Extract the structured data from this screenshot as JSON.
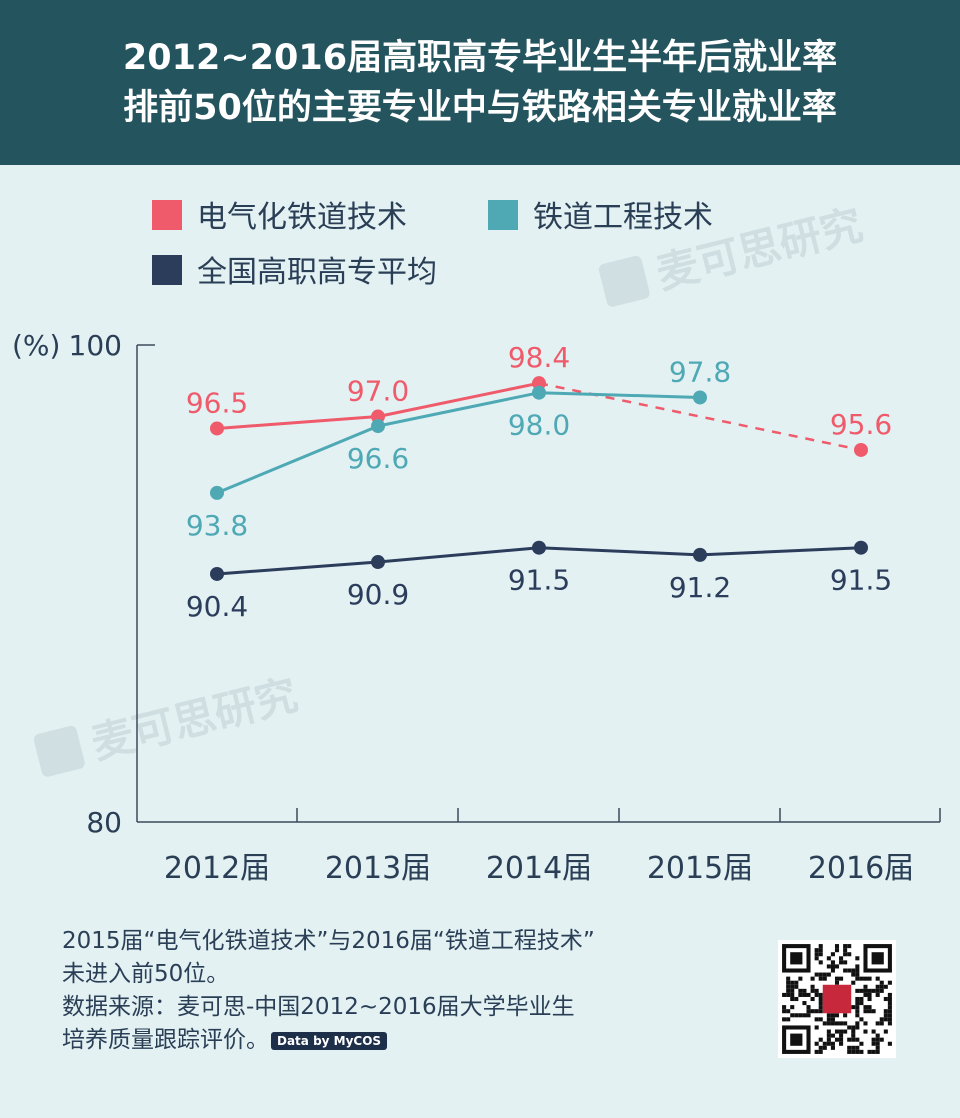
{
  "header": {
    "title_line1": "2012~2016届高职高专毕业生半年后就业率",
    "title_line2": "排前50位的主要专业中与铁路相关专业就业率"
  },
  "watermark": {
    "text": "麦可思研究",
    "logo_text": "麦可思研究"
  },
  "chart_data": {
    "type": "line",
    "categories": [
      "2012届",
      "2013届",
      "2014届",
      "2015届",
      "2016届"
    ],
    "ylabel": "(%)",
    "ylim": [
      80,
      100
    ],
    "yticks": [
      "100",
      "80"
    ],
    "legend_position": "top-left",
    "grid": false,
    "series": [
      {
        "name": "电气化铁道技术",
        "color": "#ef5b6b",
        "values": [
          96.5,
          97.0,
          98.4,
          null,
          95.6
        ],
        "labels": [
          "96.5",
          "97.0",
          "98.4",
          "",
          "95.6"
        ],
        "label_side": [
          "above",
          "above",
          "above",
          "above",
          "above"
        ],
        "dashed_bridge": [
          2,
          4
        ]
      },
      {
        "name": "铁道工程技术",
        "color": "#4fa9b5",
        "values": [
          93.8,
          96.6,
          98.0,
          97.8,
          null
        ],
        "labels": [
          "93.8",
          "96.6",
          "98.0",
          "97.8",
          ""
        ],
        "label_side": [
          "below",
          "below",
          "below",
          "above",
          "above"
        ]
      },
      {
        "name": "全国高职高专平均",
        "color": "#2c3d5c",
        "values": [
          90.4,
          90.9,
          91.5,
          91.2,
          91.5
        ],
        "labels": [
          "90.4",
          "90.9",
          "91.5",
          "91.2",
          "91.5"
        ],
        "label_side": [
          "below",
          "below",
          "below",
          "below",
          "below"
        ]
      }
    ]
  },
  "footer": {
    "note_line1": "2015届“电气化铁道技术”与2016届“铁道工程技术”",
    "note_line2": "未进入前50位。",
    "source_line1": "数据来源：麦可思-中国2012~2016届大学毕业生",
    "source_line2": "培养质量跟踪评价。",
    "badge": "Data by MyCOS"
  },
  "colors": {
    "header_bg": "#24545e",
    "page_bg": "#e3f1f3",
    "axis": "#3a4a5a",
    "text_dark": "#2a3e56"
  }
}
